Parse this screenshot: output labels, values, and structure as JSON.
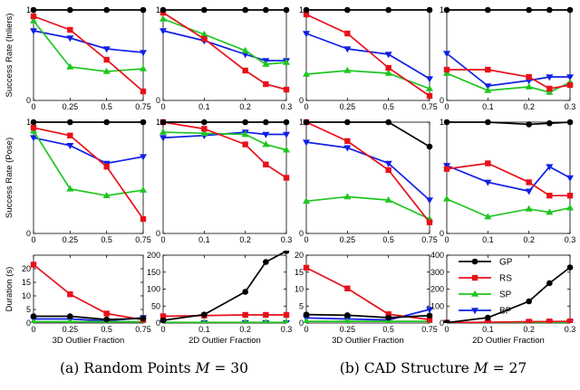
{
  "colors": {
    "GP": "#000000",
    "RS": "#e8101a",
    "SP": "#1fc61f",
    "BP": "#1020e6"
  },
  "markers": {
    "GP": "circle",
    "RS": "square",
    "SP": "triangle-up",
    "BP": "triangle-down"
  },
  "legend": {
    "entries": [
      "GP",
      "RS",
      "SP",
      "BP"
    ]
  },
  "captions": {
    "a": {
      "prefix": "(a) Random Points ",
      "var": "M",
      "rest": " = 30"
    },
    "b": {
      "prefix": "(b) CAD Structure ",
      "var": "M",
      "rest": " = 27"
    }
  },
  "row_labels": [
    "Success Rate (Inliers)",
    "Success Rate (Pose)",
    "Duration (s)"
  ],
  "x_labels": {
    "3d": "3D Outlier Fraction",
    "2d": "2D Outlier Fraction"
  },
  "chart_data": [
    {
      "type": "line",
      "row": 0,
      "col": 0,
      "x": [
        0,
        0.25,
        0.5,
        0.75
      ],
      "xticks": [
        "0",
        "0.25",
        "0.5",
        "0.75"
      ],
      "xlim": [
        0,
        0.75
      ],
      "ylim": [
        0,
        1
      ],
      "yticks": [
        "0",
        "1"
      ],
      "ylabel": "Success Rate (Inliers)",
      "xlabel": "",
      "series": [
        {
          "name": "GP",
          "values": [
            1.0,
            1.0,
            1.0,
            1.0
          ]
        },
        {
          "name": "RS",
          "values": [
            0.93,
            0.78,
            0.45,
            0.1
          ]
        },
        {
          "name": "SP",
          "values": [
            0.88,
            0.37,
            0.32,
            0.35
          ]
        },
        {
          "name": "BP",
          "values": [
            0.77,
            0.69,
            0.57,
            0.53
          ]
        }
      ]
    },
    {
      "type": "line",
      "row": 0,
      "col": 1,
      "x": [
        0,
        0.1,
        0.2,
        0.25,
        0.3
      ],
      "xticks": [
        "0",
        "0.1",
        "0.2",
        "0.3"
      ],
      "xlim": [
        0,
        0.3
      ],
      "ylim": [
        0,
        1
      ],
      "yticks": [
        "0",
        "1"
      ],
      "ylabel": "",
      "xlabel": "",
      "series": [
        {
          "name": "GP",
          "values": [
            1.0,
            1.0,
            1.0,
            1.0,
            1.0
          ]
        },
        {
          "name": "RS",
          "values": [
            0.97,
            0.68,
            0.33,
            0.18,
            0.12
          ]
        },
        {
          "name": "SP",
          "values": [
            0.9,
            0.73,
            0.55,
            0.4,
            0.42
          ]
        },
        {
          "name": "BP",
          "values": [
            0.77,
            0.66,
            0.51,
            0.44,
            0.44
          ]
        }
      ]
    },
    {
      "type": "line",
      "row": 0,
      "col": 2,
      "x": [
        0,
        0.25,
        0.5,
        0.75
      ],
      "xticks": [
        "0",
        "0.25",
        "0.5",
        "0.75"
      ],
      "xlim": [
        0,
        0.75
      ],
      "ylim": [
        0,
        1
      ],
      "yticks": [
        "0",
        "1"
      ],
      "ylabel": "",
      "xlabel": "",
      "series": [
        {
          "name": "GP",
          "values": [
            1.0,
            1.0,
            1.0,
            1.0
          ]
        },
        {
          "name": "RS",
          "values": [
            0.95,
            0.74,
            0.36,
            0.05
          ]
        },
        {
          "name": "SP",
          "values": [
            0.29,
            0.33,
            0.3,
            0.13
          ]
        },
        {
          "name": "BP",
          "values": [
            0.74,
            0.57,
            0.51,
            0.24
          ]
        }
      ]
    },
    {
      "type": "line",
      "row": 0,
      "col": 3,
      "x": [
        0,
        0.1,
        0.2,
        0.25,
        0.3
      ],
      "xticks": [
        "0",
        "0.1",
        "0.2",
        "0.3"
      ],
      "xlim": [
        0,
        0.3
      ],
      "ylim": [
        0,
        1
      ],
      "yticks": [
        "0",
        "1"
      ],
      "ylabel": "",
      "xlabel": "",
      "series": [
        {
          "name": "GP",
          "values": [
            1.0,
            1.0,
            1.0,
            1.0,
            1.0
          ]
        },
        {
          "name": "RS",
          "values": [
            0.34,
            0.34,
            0.26,
            0.13,
            0.17
          ]
        },
        {
          "name": "SP",
          "values": [
            0.3,
            0.11,
            0.15,
            0.09,
            0.2
          ]
        },
        {
          "name": "BP",
          "values": [
            0.52,
            0.16,
            0.22,
            0.26,
            0.26
          ]
        }
      ]
    },
    {
      "type": "line",
      "row": 1,
      "col": 0,
      "x": [
        0,
        0.25,
        0.5,
        0.75
      ],
      "xticks": [
        "0",
        "0.25",
        "0.5",
        "0.75"
      ],
      "xlim": [
        0,
        0.75
      ],
      "ylim": [
        0,
        1
      ],
      "yticks": [
        "0",
        "1"
      ],
      "ylabel": "Success Rate (Pose)",
      "xlabel": "",
      "series": [
        {
          "name": "GP",
          "values": [
            1.0,
            1.0,
            1.0,
            1.0
          ]
        },
        {
          "name": "RS",
          "values": [
            0.95,
            0.88,
            0.6,
            0.13
          ]
        },
        {
          "name": "SP",
          "values": [
            0.92,
            0.4,
            0.34,
            0.39
          ]
        },
        {
          "name": "BP",
          "values": [
            0.86,
            0.79,
            0.63,
            0.69
          ]
        }
      ]
    },
    {
      "type": "line",
      "row": 1,
      "col": 1,
      "x": [
        0,
        0.1,
        0.2,
        0.25,
        0.3
      ],
      "xticks": [
        "0",
        "0.1",
        "0.2",
        "0.3"
      ],
      "xlim": [
        0,
        0.3
      ],
      "ylim": [
        0,
        1
      ],
      "yticks": [
        "0",
        "1"
      ],
      "ylabel": "",
      "xlabel": "",
      "series": [
        {
          "name": "GP",
          "values": [
            1.0,
            1.0,
            1.0,
            1.0,
            1.0
          ]
        },
        {
          "name": "RS",
          "values": [
            1.0,
            0.94,
            0.8,
            0.62,
            0.5
          ]
        },
        {
          "name": "SP",
          "values": [
            0.91,
            0.9,
            0.89,
            0.8,
            0.75
          ]
        },
        {
          "name": "BP",
          "values": [
            0.86,
            0.88,
            0.91,
            0.89,
            0.89
          ]
        }
      ]
    },
    {
      "type": "line",
      "row": 1,
      "col": 2,
      "x": [
        0,
        0.25,
        0.5,
        0.75
      ],
      "xticks": [
        "0",
        "0.25",
        "0.5",
        "0.75"
      ],
      "xlim": [
        0,
        0.75
      ],
      "ylim": [
        0,
        1
      ],
      "yticks": [
        "0",
        "1"
      ],
      "ylabel": "",
      "xlabel": "",
      "series": [
        {
          "name": "GP",
          "values": [
            1.0,
            1.0,
            1.0,
            0.78
          ]
        },
        {
          "name": "RS",
          "values": [
            1.0,
            0.83,
            0.57,
            0.1
          ]
        },
        {
          "name": "SP",
          "values": [
            0.29,
            0.33,
            0.3,
            0.13
          ]
        },
        {
          "name": "BP",
          "values": [
            0.82,
            0.77,
            0.63,
            0.3
          ]
        }
      ]
    },
    {
      "type": "line",
      "row": 1,
      "col": 3,
      "x": [
        0,
        0.1,
        0.2,
        0.25,
        0.3
      ],
      "xticks": [
        "0",
        "0.1",
        "0.2",
        "0.3"
      ],
      "xlim": [
        0,
        0.3
      ],
      "ylim": [
        0,
        1
      ],
      "yticks": [
        "0",
        "1"
      ],
      "ylabel": "",
      "xlabel": "",
      "series": [
        {
          "name": "GP",
          "values": [
            1.0,
            1.0,
            0.98,
            0.99,
            1.0
          ]
        },
        {
          "name": "RS",
          "values": [
            0.58,
            0.63,
            0.46,
            0.34,
            0.34
          ]
        },
        {
          "name": "SP",
          "values": [
            0.31,
            0.15,
            0.22,
            0.19,
            0.23
          ]
        },
        {
          "name": "BP",
          "values": [
            0.61,
            0.46,
            0.38,
            0.6,
            0.5
          ]
        }
      ]
    },
    {
      "type": "line",
      "row": 2,
      "col": 0,
      "x": [
        0,
        0.25,
        0.5,
        0.75
      ],
      "xticks": [
        "0",
        "0.25",
        "0.5",
        "0.75"
      ],
      "xlim": [
        0,
        0.75
      ],
      "ylim": [
        0,
        25
      ],
      "yticks": [
        "0",
        "5",
        "10",
        "15",
        "20"
      ],
      "ylabel": "Duration (s)",
      "xlabel": "3D Outlier Fraction",
      "series": [
        {
          "name": "GP",
          "values": [
            2.5,
            2.5,
            1.3,
            1.7
          ]
        },
        {
          "name": "RS",
          "values": [
            21.5,
            10.6,
            3.5,
            1.2
          ]
        },
        {
          "name": "SP",
          "values": [
            0.5,
            0.5,
            0.5,
            0.5
          ]
        },
        {
          "name": "BP",
          "values": [
            1.5,
            1.5,
            0.8,
            2.0
          ]
        }
      ]
    },
    {
      "type": "line",
      "row": 2,
      "col": 1,
      "x": [
        0,
        0.1,
        0.2,
        0.25,
        0.3
      ],
      "xticks": [
        "0",
        "0.1",
        "0.2",
        "0.3"
      ],
      "xlim": [
        0,
        0.3
      ],
      "ylim": [
        0,
        200
      ],
      "yticks": [
        "0",
        "50",
        "100",
        "150",
        "200"
      ],
      "ylabel": "",
      "xlabel": "2D Outlier Fraction",
      "series": [
        {
          "name": "GP",
          "values": [
            8,
            25,
            92,
            180,
            300
          ]
        },
        {
          "name": "RS",
          "values": [
            20,
            22,
            24,
            24,
            24
          ]
        },
        {
          "name": "SP",
          "values": [
            2,
            2,
            2,
            2,
            2
          ]
        },
        {
          "name": "BP",
          "values": [
            1,
            1,
            1,
            1,
            1
          ]
        }
      ]
    },
    {
      "type": "line",
      "row": 2,
      "col": 2,
      "x": [
        0,
        0.25,
        0.5,
        0.75
      ],
      "xticks": [
        "0",
        "0.25",
        "0.5",
        "0.75"
      ],
      "xlim": [
        0,
        0.75
      ],
      "ylim": [
        0,
        20
      ],
      "yticks": [
        "0",
        "5",
        "10",
        "15",
        "20"
      ],
      "ylabel": "",
      "xlabel": "3D Outlier Fraction",
      "series": [
        {
          "name": "GP",
          "values": [
            2.5,
            2.3,
            1.6,
            2.2
          ]
        },
        {
          "name": "RS",
          "values": [
            16.3,
            10.2,
            2.6,
            1.0
          ]
        },
        {
          "name": "SP",
          "values": [
            0.5,
            0.5,
            0.5,
            0.5
          ]
        },
        {
          "name": "BP",
          "values": [
            1.5,
            1.2,
            0.9,
            4.0
          ]
        }
      ]
    },
    {
      "type": "line",
      "row": 2,
      "col": 3,
      "x": [
        0,
        0.1,
        0.2,
        0.25,
        0.3
      ],
      "xticks": [
        "0",
        "0.1",
        "0.2",
        "0.3"
      ],
      "xlim": [
        0,
        0.3
      ],
      "ylim": [
        0,
        400
      ],
      "yticks": [
        "0",
        "100",
        "200",
        "300",
        "400"
      ],
      "ylabel": "",
      "xlabel": "2D Outlier Fraction",
      "series": [
        {
          "name": "GP",
          "values": [
            2,
            32,
            128,
            235,
            328
          ]
        },
        {
          "name": "RS",
          "values": [
            3,
            5,
            8,
            9,
            10
          ]
        },
        {
          "name": "SP",
          "values": [
            1,
            1,
            1,
            1,
            1
          ]
        },
        {
          "name": "BP",
          "values": [
            2,
            2,
            3,
            4,
            6
          ]
        }
      ]
    }
  ]
}
